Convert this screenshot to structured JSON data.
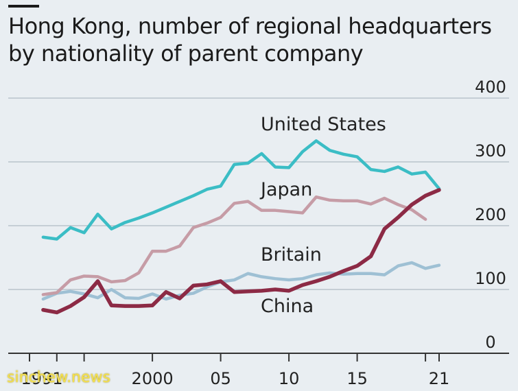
{
  "chart_data": {
    "type": "line",
    "title": "Hong Kong, number of regional headquarters by nationality of parent company",
    "xlabel": "",
    "ylabel": "",
    "ylim": [
      0,
      400
    ],
    "yticks": [
      0,
      100,
      200,
      300,
      400
    ],
    "xtick_labels": [
      {
        "year": 1991,
        "label": "1991"
      },
      {
        "year": 2000,
        "label": "2000"
      },
      {
        "year": 2005,
        "label": "05"
      },
      {
        "year": 2010,
        "label": "10"
      },
      {
        "year": 2015,
        "label": "15"
      },
      {
        "year": 2021,
        "label": "21"
      }
    ],
    "x": [
      1991,
      1992,
      1993,
      1994,
      1995,
      1996,
      1997,
      1998,
      1999,
      2000,
      2001,
      2002,
      2003,
      2004,
      2005,
      2006,
      2007,
      2008,
      2009,
      2010,
      2011,
      2012,
      2013,
      2014,
      2015,
      2016,
      2017,
      2018,
      2019,
      2020,
      2021
    ],
    "grid": true,
    "series": [
      {
        "name": "United States",
        "color": "#3bbdc5",
        "values": [
          182,
          179,
          197,
          189,
          218,
          195,
          205,
          212,
          220,
          229,
          238,
          247,
          257,
          262,
          296,
          298,
          313,
          292,
          291,
          316,
          333,
          318,
          312,
          308,
          288,
          285,
          292,
          281,
          284,
          258,
          null
        ]
      },
      {
        "name": "Japan",
        "color": "#c69ca6",
        "values": [
          92,
          95,
          115,
          121,
          120,
          112,
          114,
          126,
          160,
          160,
          168,
          197,
          204,
          213,
          235,
          238,
          224,
          224,
          222,
          220,
          245,
          240,
          239,
          239,
          234,
          243,
          233,
          225,
          210,
          null,
          null
        ]
      },
      {
        "name": "Britain",
        "color": "#9ec0d4",
        "values": [
          85,
          94,
          97,
          93,
          87,
          100,
          87,
          86,
          93,
          85,
          91,
          94,
          104,
          112,
          115,
          125,
          120,
          117,
          115,
          117,
          123,
          126,
          124,
          125,
          125,
          123,
          137,
          142,
          133,
          138,
          null
        ]
      },
      {
        "name": "China",
        "color": "#8c2a45",
        "values": [
          68,
          64,
          74,
          88,
          113,
          75,
          74,
          74,
          75,
          96,
          86,
          106,
          108,
          113,
          96,
          97,
          98,
          100,
          98,
          107,
          113,
          120,
          129,
          137,
          152,
          195,
          213,
          233,
          247,
          256,
          null
        ]
      }
    ],
    "series_x_offset": 1992,
    "legend": "inline labels"
  }
}
